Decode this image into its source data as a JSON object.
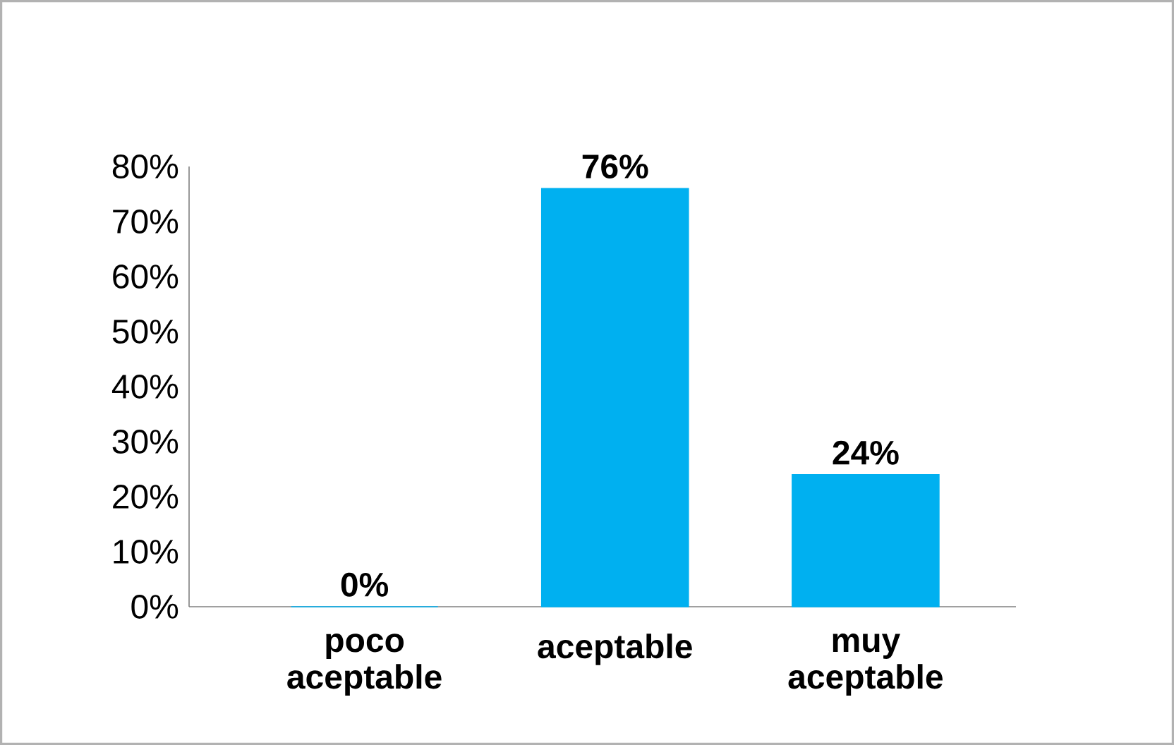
{
  "chart_data": {
    "type": "bar",
    "categories": [
      "poco aceptable",
      "aceptable",
      "muy aceptable"
    ],
    "values": [
      0,
      76,
      24
    ],
    "color": "#00b0f0",
    "value_labels": [
      "0%",
      "76%",
      "24%"
    ],
    "ylim": [
      0,
      80
    ],
    "yticks": [
      {
        "value": 0,
        "label": "0%"
      },
      {
        "value": 10,
        "label": "10%"
      },
      {
        "value": 20,
        "label": "20%"
      },
      {
        "value": 30,
        "label": "30%"
      },
      {
        "value": 40,
        "label": "40%"
      },
      {
        "value": 50,
        "label": "50%"
      },
      {
        "value": 60,
        "label": "60%"
      },
      {
        "value": 70,
        "label": "70%"
      },
      {
        "value": 80,
        "label": "80%"
      }
    ]
  }
}
